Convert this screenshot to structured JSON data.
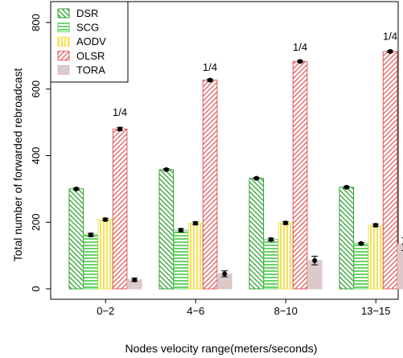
{
  "chart_data": {
    "type": "bar",
    "xlabel": "Nodes velocity range(meters/seconds)",
    "ylabel": "Total number of forwarded rebroadcast",
    "ylim": [
      0,
      850
    ],
    "yticks": [
      0,
      200,
      400,
      600,
      800
    ],
    "categories": [
      "0−2",
      "4−6",
      "8−10",
      "13−15"
    ],
    "legend_position": "top-left",
    "grid": false,
    "series": [
      {
        "name": "DSR",
        "color": "#2ca02c",
        "pattern": "hatch-back",
        "values": [
          300,
          358,
          332,
          305
        ],
        "errors": [
          3,
          3,
          3,
          3
        ]
      },
      {
        "name": "SCG",
        "color": "#5cd65c",
        "pattern": "horizontal",
        "values": [
          162,
          176,
          148,
          136
        ],
        "errors": [
          5,
          5,
          4,
          3
        ]
      },
      {
        "name": "AODV",
        "color": "#f2e64d",
        "pattern": "vertical",
        "values": [
          208,
          197,
          198,
          191
        ],
        "errors": [
          4,
          4,
          4,
          4
        ]
      },
      {
        "name": "OLSR",
        "color": "#e05a5a",
        "pattern": "hatch-fwd",
        "values": [
          480,
          627,
          683,
          713
        ],
        "errors": [
          5,
          3,
          3,
          3
        ]
      },
      {
        "name": "TORA",
        "color": "#d9c2c2",
        "pattern": "solid",
        "values": [
          27,
          45,
          85,
          134
        ],
        "errors": [
          5,
          9,
          13,
          19
        ]
      }
    ],
    "annotations": [
      {
        "text": "1/4",
        "category": 0,
        "y": 520
      },
      {
        "text": "1/4",
        "category": 1,
        "y": 655
      },
      {
        "text": "1/4",
        "category": 2,
        "y": 715
      },
      {
        "text": "1/4",
        "category": 3,
        "y": 748
      }
    ]
  }
}
